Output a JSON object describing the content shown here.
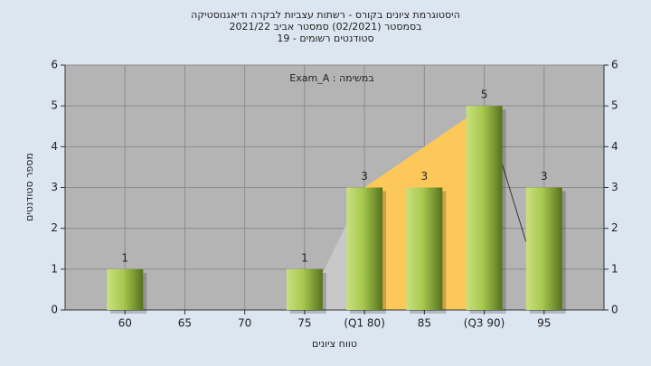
{
  "chart_data": {
    "type": "bar",
    "title": "היסטוגרמת ציונים בקורס - רשתות עצביות לבקרה ודיאגנוסטיקה",
    "subtitle": "בסמסטר (02/2021) סמסטר אביב 2021/22",
    "subtitle2": "סטודנטים רשומים - 19",
    "annotation": "במשימה : Exam_A",
    "x_label": "טווח ציונים",
    "y_label": "מספר סטודנטים",
    "categories": [
      "60",
      "65",
      "70",
      "75",
      "(Q1 80)",
      "85",
      "(Q3 90)",
      "95"
    ],
    "values": [
      1,
      0,
      0,
      1,
      3,
      3,
      5,
      3
    ],
    "color": "#8fb83a",
    "ylim": [
      0,
      6
    ],
    "yticks": [
      0,
      1,
      2,
      3,
      4,
      5,
      6
    ],
    "grid": true
  }
}
